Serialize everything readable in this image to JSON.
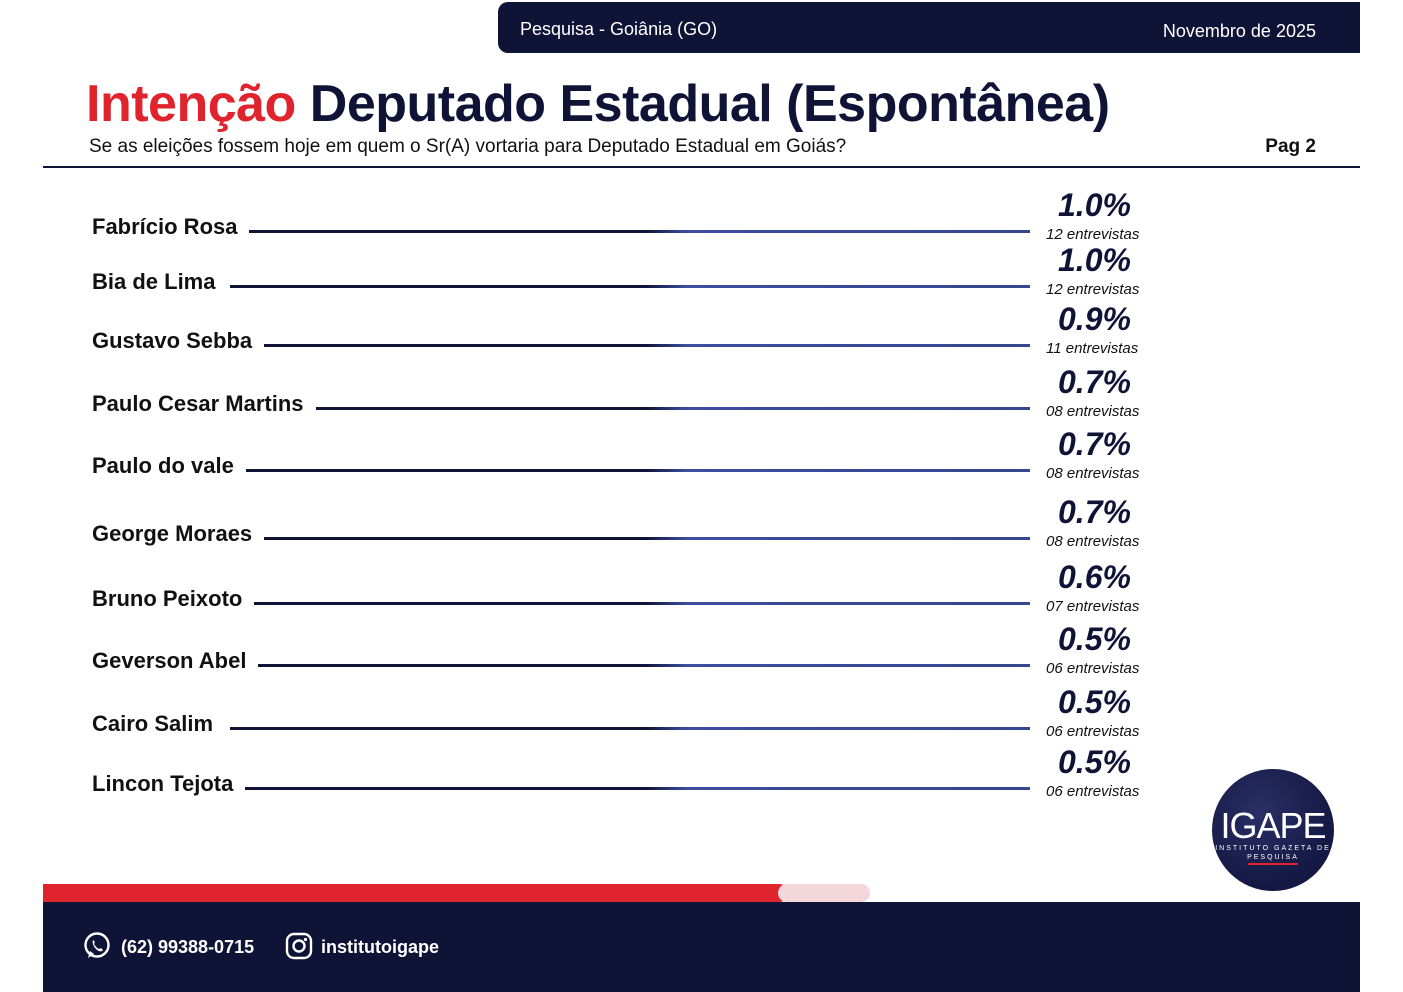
{
  "header": {
    "survey": "Pesquisa - Goiânia (GO)",
    "date": "Novembro de 2025"
  },
  "title": {
    "highlight": "Intenção",
    "rest": "Deputado Estadual (Espontânea)"
  },
  "subtitle": "Se as eleições fossem hoje em quem o Sr(A) vortaria para Deputado Estadual em Goiás?",
  "page_label": "Pag 2",
  "chart_data": {
    "type": "bar",
    "title": "Intenção Deputado Estadual (Espontânea)",
    "categories": [
      "Fabrício Rosa",
      "Bia de Lima",
      "Gustavo Sebba",
      "Paulo Cesar Martins",
      "Paulo do vale",
      "George Moraes",
      "Bruno Peixoto",
      "Geverson Abel",
      "Cairo Salim",
      "Lincon Tejota"
    ],
    "values": [
      1.0,
      1.0,
      0.9,
      0.7,
      0.7,
      0.7,
      0.6,
      0.5,
      0.5,
      0.5
    ],
    "value_labels": [
      "1.0%",
      "1.0%",
      "0.9%",
      "0.7%",
      "0.7%",
      "0.7%",
      "0.6%",
      "0.5%",
      "0.5%",
      "0.5%"
    ],
    "count_labels": [
      "12 entrevistas",
      "12 entrevistas",
      "11 entrevistas",
      "08 entrevistas",
      "08 entrevistas",
      "08 entrevistas",
      "07 entrevistas",
      "06 entrevistas",
      "06 entrevistas",
      "06 entrevistas"
    ],
    "unit": "%"
  },
  "logo": {
    "name": "IGAPE",
    "tagline": "INSTITUTO GAZETA DE PESQUISA"
  },
  "footer": {
    "phone": "(62) 99388-0715",
    "instagram": "institutoigape"
  },
  "colors": {
    "navy": "#0f1437",
    "red": "#e0242e"
  }
}
